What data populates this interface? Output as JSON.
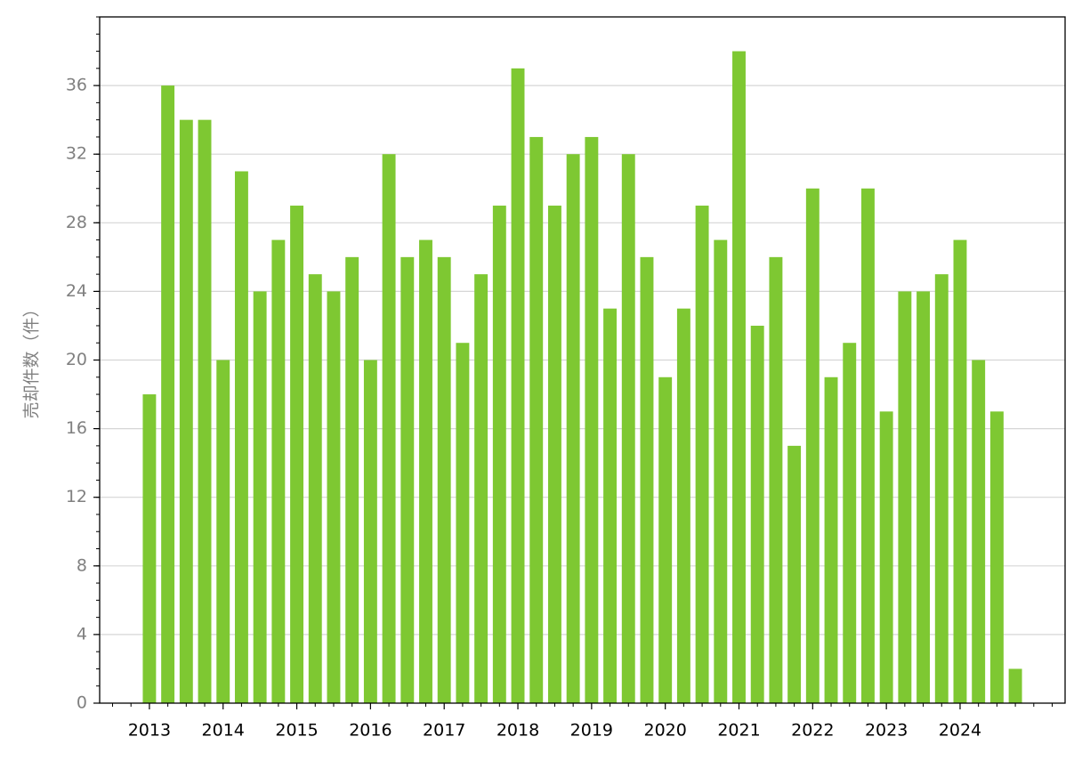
{
  "chart_data": {
    "type": "bar",
    "y_label": "売却件数（件）",
    "categories": [
      "2013",
      null,
      null,
      null,
      "2014",
      null,
      null,
      null,
      "2015",
      null,
      null,
      null,
      "2016",
      null,
      null,
      null,
      "2017",
      null,
      null,
      null,
      "2018",
      null,
      null,
      null,
      "2019",
      null,
      null,
      null,
      "2020",
      null,
      null,
      null,
      "2021",
      null,
      null,
      null,
      "2022",
      null,
      null,
      null,
      "2023",
      null,
      null,
      null,
      "2024",
      null,
      null,
      null
    ],
    "values": [
      18,
      36,
      34,
      34,
      20,
      31,
      24,
      27,
      29,
      25,
      24,
      26,
      20,
      32,
      26,
      27,
      26,
      21,
      25,
      29,
      37,
      33,
      29,
      32,
      33,
      23,
      32,
      26,
      19,
      23,
      29,
      27,
      38,
      22,
      26,
      15,
      30,
      19,
      21,
      30,
      17,
      24,
      24,
      25,
      27,
      20,
      17,
      2
    ],
    "color": "#7ec832",
    "ylim": [
      0,
      40
    ],
    "yticks": [
      0,
      4,
      8,
      12,
      16,
      20,
      24,
      28,
      32,
      36
    ],
    "grid": true
  }
}
